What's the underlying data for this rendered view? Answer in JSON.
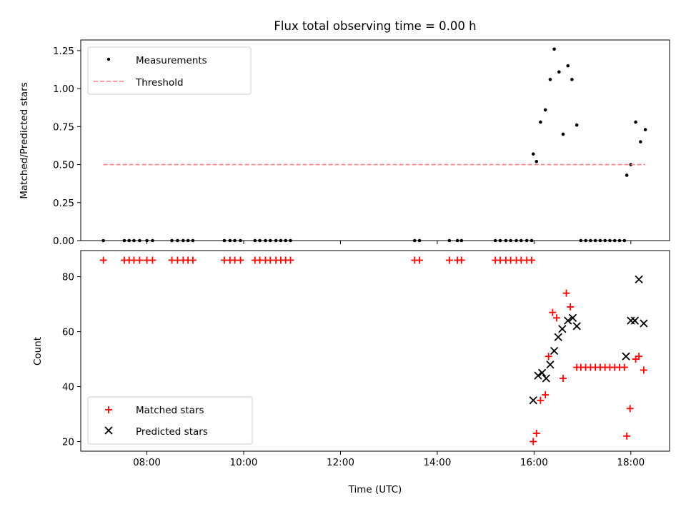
{
  "figure": {
    "title": "Flux total observing time = 0.00 h"
  },
  "chart_data": [
    {
      "type": "scatter",
      "ylabel": "Matched/Predicted stars",
      "ylim": [
        0.0,
        1.32
      ],
      "xlim": [
        "06:38",
        "18:48"
      ],
      "yticks": [
        0.0,
        0.25,
        0.5,
        0.75,
        1.0,
        1.25
      ],
      "ytick_labels": [
        "0.00",
        "0.25",
        "0.50",
        "0.75",
        "1.00",
        "1.25"
      ],
      "legend_location": "upper left",
      "legend": {
        "measurements": "Measurements",
        "threshold": "Threshold"
      },
      "series": [
        {
          "name": "Measurements",
          "marker": "dot",
          "color": "#000000",
          "points": [
            [
              "07:06",
              0
            ],
            [
              "07:32",
              0
            ],
            [
              "07:38",
              0
            ],
            [
              "07:44",
              0
            ],
            [
              "07:51",
              0
            ],
            [
              "08:00",
              0
            ],
            [
              "08:07",
              0
            ],
            [
              "08:31",
              0
            ],
            [
              "08:38",
              0
            ],
            [
              "08:45",
              0
            ],
            [
              "08:51",
              0
            ],
            [
              "08:57",
              0
            ],
            [
              "09:36",
              0
            ],
            [
              "09:43",
              0
            ],
            [
              "09:49",
              0
            ],
            [
              "09:56",
              0
            ],
            [
              "10:14",
              0
            ],
            [
              "10:20",
              0
            ],
            [
              "10:27",
              0
            ],
            [
              "10:33",
              0
            ],
            [
              "10:40",
              0
            ],
            [
              "10:46",
              0
            ],
            [
              "10:52",
              0
            ],
            [
              "10:58",
              0
            ],
            [
              "13:32",
              0
            ],
            [
              "13:38",
              0
            ],
            [
              "14:15",
              0
            ],
            [
              "14:25",
              0
            ],
            [
              "14:30",
              0
            ],
            [
              "15:12",
              0
            ],
            [
              "15:18",
              0
            ],
            [
              "15:25",
              0
            ],
            [
              "15:31",
              0
            ],
            [
              "15:38",
              0
            ],
            [
              "15:44",
              0
            ],
            [
              "15:51",
              0
            ],
            [
              "15:57",
              0
            ],
            [
              "15:59",
              0.57
            ],
            [
              "16:03",
              0.52
            ],
            [
              "16:08",
              0.78
            ],
            [
              "16:14",
              0.86
            ],
            [
              "16:20",
              1.06
            ],
            [
              "16:25",
              1.26
            ],
            [
              "16:31",
              1.11
            ],
            [
              "16:36",
              0.7
            ],
            [
              "16:42",
              1.15
            ],
            [
              "16:47",
              1.06
            ],
            [
              "16:53",
              0.76
            ],
            [
              "16:58",
              0
            ],
            [
              "17:04",
              0
            ],
            [
              "17:10",
              0
            ],
            [
              "17:16",
              0
            ],
            [
              "17:22",
              0
            ],
            [
              "17:28",
              0
            ],
            [
              "17:34",
              0
            ],
            [
              "17:40",
              0
            ],
            [
              "17:46",
              0
            ],
            [
              "17:52",
              0
            ],
            [
              "17:55",
              0.43
            ],
            [
              "18:00",
              0.5
            ],
            [
              "18:06",
              0.78
            ],
            [
              "18:12",
              0.65
            ],
            [
              "18:18",
              0.73
            ]
          ]
        },
        {
          "name": "Threshold",
          "style": "dashed",
          "color": "#ff7f7f",
          "points": [
            [
              "07:06",
              0.5
            ],
            [
              "18:18",
              0.5
            ]
          ]
        }
      ]
    },
    {
      "type": "scatter",
      "xlabel": "Time (UTC)",
      "ylabel": "Count",
      "ylim": [
        16.5,
        89.5
      ],
      "xlim": [
        "06:38",
        "18:48"
      ],
      "yticks": [
        20,
        40,
        60,
        80
      ],
      "ytick_labels": [
        "20",
        "40",
        "60",
        "80"
      ],
      "xticks": [
        "08:00",
        "10:00",
        "12:00",
        "14:00",
        "16:00",
        "18:00"
      ],
      "legend_location": "lower left",
      "legend": {
        "matched": "Matched stars",
        "predicted": "Predicted stars"
      },
      "series": [
        {
          "name": "Matched stars",
          "marker": "plus",
          "color": "#ff0000",
          "points": [
            [
              "07:06",
              86
            ],
            [
              "07:32",
              86
            ],
            [
              "07:38",
              86
            ],
            [
              "07:44",
              86
            ],
            [
              "07:51",
              86
            ],
            [
              "08:00",
              86
            ],
            [
              "08:07",
              86
            ],
            [
              "08:31",
              86
            ],
            [
              "08:38",
              86
            ],
            [
              "08:45",
              86
            ],
            [
              "08:51",
              86
            ],
            [
              "08:57",
              86
            ],
            [
              "09:36",
              86
            ],
            [
              "09:43",
              86
            ],
            [
              "09:49",
              86
            ],
            [
              "09:56",
              86
            ],
            [
              "10:14",
              86
            ],
            [
              "10:20",
              86
            ],
            [
              "10:27",
              86
            ],
            [
              "10:33",
              86
            ],
            [
              "10:40",
              86
            ],
            [
              "10:46",
              86
            ],
            [
              "10:52",
              86
            ],
            [
              "10:58",
              86
            ],
            [
              "13:32",
              86
            ],
            [
              "13:38",
              86
            ],
            [
              "14:15",
              86
            ],
            [
              "14:25",
              86
            ],
            [
              "14:30",
              86
            ],
            [
              "15:12",
              86
            ],
            [
              "15:18",
              86
            ],
            [
              "15:25",
              86
            ],
            [
              "15:31",
              86
            ],
            [
              "15:38",
              86
            ],
            [
              "15:44",
              86
            ],
            [
              "15:51",
              86
            ],
            [
              "15:57",
              86
            ],
            [
              "15:59",
              20
            ],
            [
              "16:03",
              23
            ],
            [
              "16:08",
              35
            ],
            [
              "16:14",
              37
            ],
            [
              "16:18",
              51
            ],
            [
              "16:23",
              67
            ],
            [
              "16:28",
              65
            ],
            [
              "16:36",
              43
            ],
            [
              "16:40",
              74
            ],
            [
              "16:45",
              69
            ],
            [
              "16:53",
              47
            ],
            [
              "16:58",
              47
            ],
            [
              "17:04",
              47
            ],
            [
              "17:10",
              47
            ],
            [
              "17:16",
              47
            ],
            [
              "17:22",
              47
            ],
            [
              "17:28",
              47
            ],
            [
              "17:34",
              47
            ],
            [
              "17:40",
              47
            ],
            [
              "17:46",
              47
            ],
            [
              "17:52",
              47
            ],
            [
              "17:55",
              22
            ],
            [
              "17:59",
              32
            ],
            [
              "18:06",
              50
            ],
            [
              "18:10",
              51
            ],
            [
              "18:16",
              46
            ]
          ]
        },
        {
          "name": "Predicted stars",
          "marker": "x",
          "color": "#000000",
          "points": [
            [
              "15:59",
              35
            ],
            [
              "16:05",
              44
            ],
            [
              "16:10",
              45
            ],
            [
              "16:15",
              43
            ],
            [
              "16:20",
              48
            ],
            [
              "16:25",
              53
            ],
            [
              "16:30",
              58
            ],
            [
              "16:35",
              61
            ],
            [
              "16:42",
              64
            ],
            [
              "16:48",
              65
            ],
            [
              "16:53",
              62
            ],
            [
              "17:54",
              51
            ],
            [
              "18:00",
              64
            ],
            [
              "18:05",
              64
            ],
            [
              "18:10",
              79
            ],
            [
              "18:16",
              63
            ]
          ]
        }
      ]
    }
  ]
}
